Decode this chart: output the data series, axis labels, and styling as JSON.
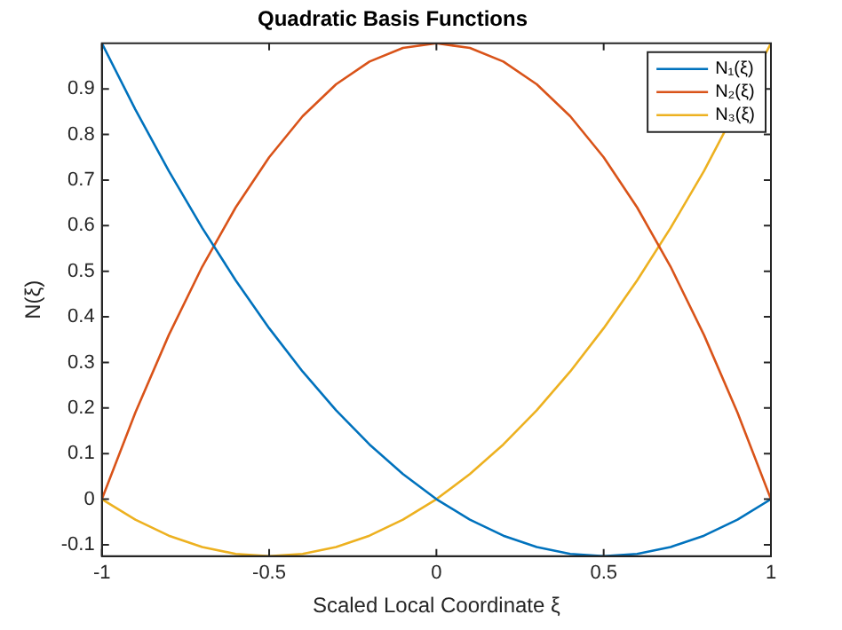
{
  "chart_data": {
    "type": "line",
    "title": "Quadratic Basis Functions",
    "xlabel": "Scaled Local Coordinate ξ",
    "ylabel": "N(ξ)",
    "x": [
      -1,
      -0.9,
      -0.8,
      -0.7,
      -0.6,
      -0.5,
      -0.4,
      -0.3,
      -0.2,
      -0.1,
      0,
      0.1,
      0.2,
      0.3,
      0.4,
      0.5,
      0.6,
      0.7,
      0.8,
      0.9,
      1
    ],
    "series": [
      {
        "name": "N₁(ξ)",
        "color": "#0072bd",
        "values": [
          1,
          0.855,
          0.72,
          0.595,
          0.48,
          0.375,
          0.28,
          0.195,
          0.12,
          0.055,
          0,
          -0.045,
          -0.08,
          -0.105,
          -0.12,
          -0.125,
          -0.12,
          -0.105,
          -0.08,
          -0.045,
          0
        ]
      },
      {
        "name": "N₂(ξ)",
        "color": "#d95319",
        "values": [
          0,
          0.19,
          0.36,
          0.51,
          0.64,
          0.75,
          0.84,
          0.91,
          0.96,
          0.99,
          1,
          0.99,
          0.96,
          0.91,
          0.84,
          0.75,
          0.64,
          0.51,
          0.36,
          0.19,
          0
        ]
      },
      {
        "name": "N₃(ξ)",
        "color": "#edb120",
        "values": [
          0,
          -0.045,
          -0.08,
          -0.105,
          -0.12,
          -0.125,
          -0.12,
          -0.105,
          -0.08,
          -0.045,
          0,
          0.055,
          0.12,
          0.195,
          0.28,
          0.375,
          0.48,
          0.595,
          0.72,
          null,
          1
        ]
      }
    ],
    "xlim": [
      -1,
      1
    ],
    "xticks": [
      -1,
      -0.5,
      0,
      0.5,
      1
    ],
    "ylim": [
      -0.125,
      1
    ],
    "yticks": [
      -0.1,
      0,
      0.1,
      0.2,
      0.3,
      0.4,
      0.5,
      0.6,
      0.7,
      0.8,
      0.9
    ],
    "grid": false,
    "legend": "top right",
    "marker": "none",
    "line_style": "solid"
  }
}
